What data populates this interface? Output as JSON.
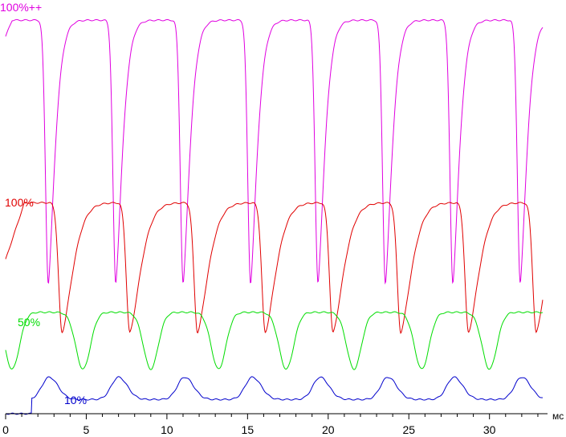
{
  "chart_data": {
    "type": "line",
    "title": "",
    "xlabel": "",
    "x_unit": "мс",
    "ylabel": "",
    "xlim": [
      0,
      33.5
    ],
    "ylim": [
      0,
      1
    ],
    "grid": false,
    "legend": "none",
    "x_ticks": [
      0,
      5,
      10,
      15,
      20,
      25,
      30
    ],
    "series": [
      {
        "name": "100%++",
        "color": "#e000e0",
        "baseline": 0.02,
        "high": 0.97,
        "period": 4.18,
        "high_x": [
          0.0,
          3.25,
          7.43,
          11.61,
          15.79,
          19.97,
          24.15,
          28.33
        ],
        "low_x": [
          2.65,
          6.83,
          11.01,
          15.19,
          19.37,
          23.55,
          27.73,
          31.91
        ],
        "low_y": 0.32
      },
      {
        "name": "100%",
        "color": "#e00000",
        "period": 4.18,
        "high_y": 0.52,
        "low_y": 0.2,
        "low_x": [
          3.5,
          7.7,
          11.9,
          16.1,
          20.3,
          24.5,
          28.7,
          32.9
        ]
      },
      {
        "name": "50%",
        "color": "#00dd00",
        "period": 4.18,
        "high_y": 0.25,
        "low_y": 0.11,
        "low_x": [
          0.4,
          4.8,
          9.0,
          13.2,
          17.4,
          21.6,
          25.8,
          30.0
        ]
      },
      {
        "name": "10%",
        "color": "#0000cc",
        "period": 4.18,
        "base_y": 0.035,
        "peak_y": 0.09,
        "peak_x": [
          2.7,
          7.0,
          11.1,
          15.3,
          19.5,
          23.7,
          27.8,
          32.0
        ]
      }
    ]
  }
}
